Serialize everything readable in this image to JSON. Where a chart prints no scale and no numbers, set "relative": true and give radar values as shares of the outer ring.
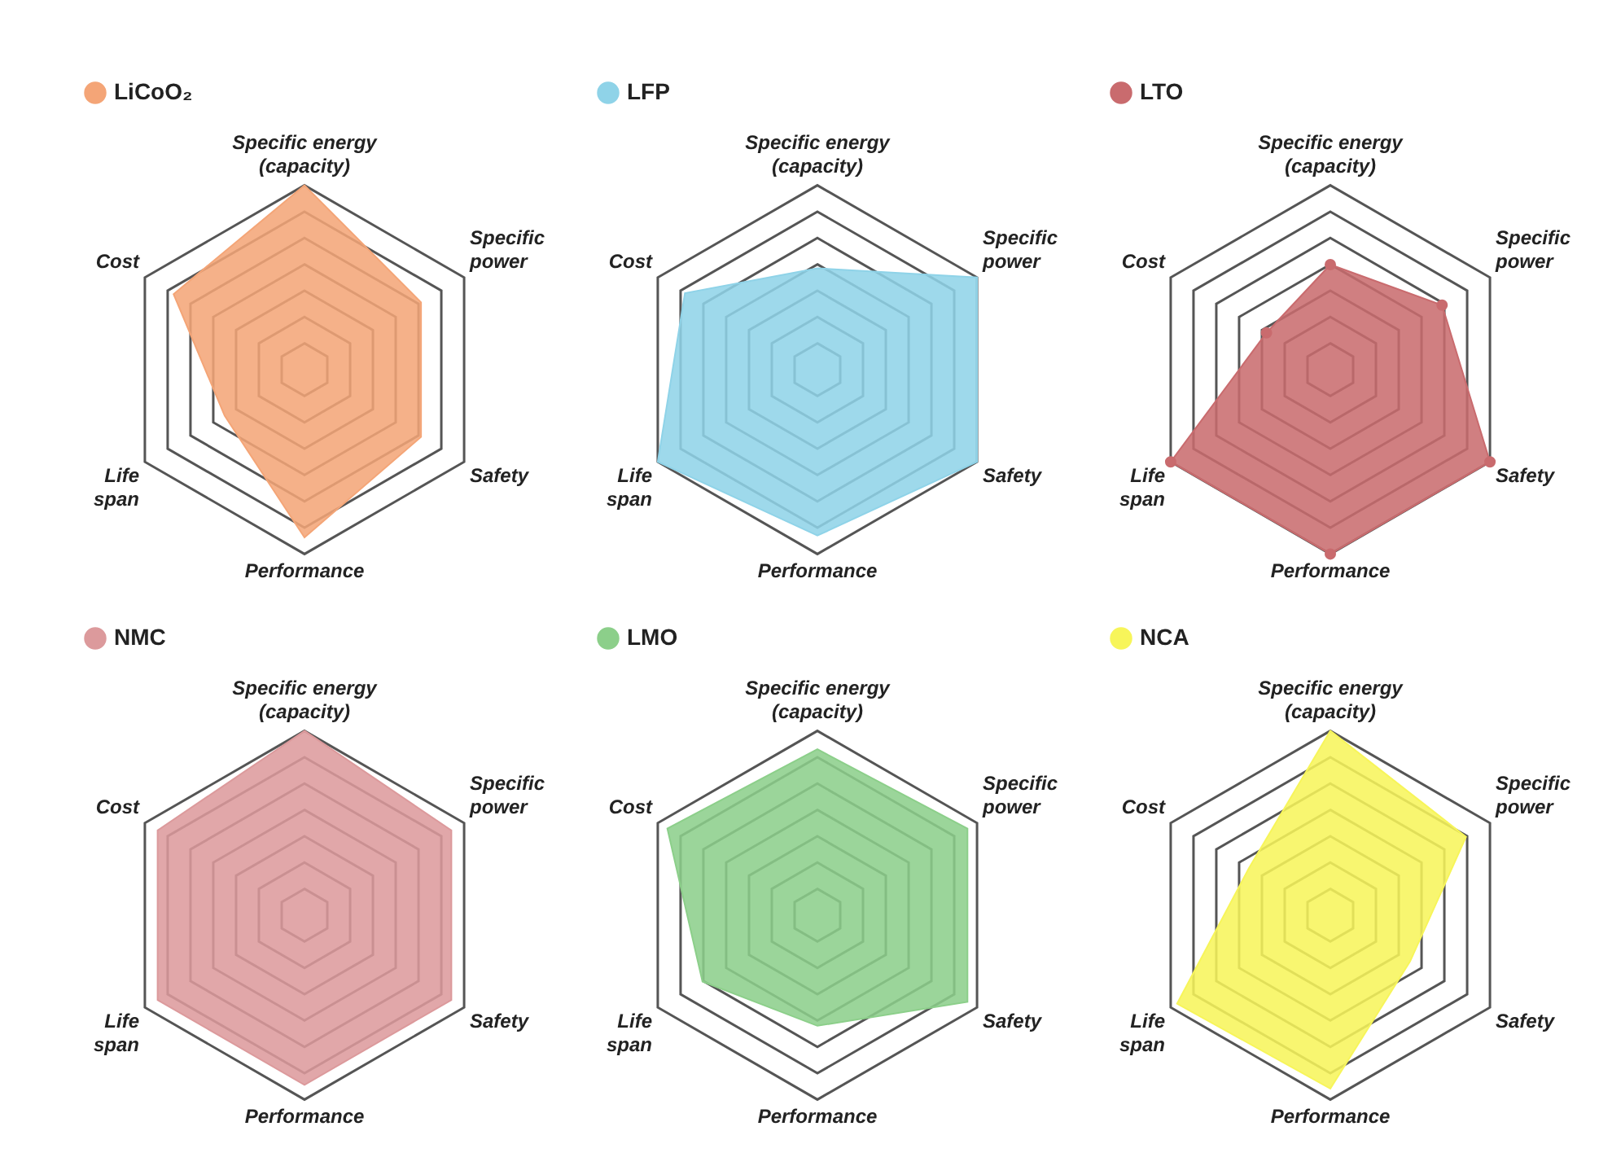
{
  "chart_data": [
    {
      "type": "radar",
      "categories": [
        "Specific energy\n(capacity)",
        "Specific\npower",
        "Safety",
        "Performance",
        "Life\nspan",
        "Cost"
      ],
      "relative": true,
      "grid": true,
      "legend": "top left",
      "marker": "none",
      "series": [
        {
          "name": "LiCoO₂",
          "color": "#f4a577",
          "values": [
            1.0,
            0.73,
            0.73,
            0.91,
            0.5,
            0.82
          ]
        }
      ]
    },
    {
      "type": "radar",
      "categories": [
        "Specific energy\n(capacity)",
        "Specific\npower",
        "Safety",
        "Performance",
        "Life\nspan",
        "Cost"
      ],
      "relative": true,
      "grid": true,
      "legend": "top left",
      "marker": "none",
      "series": [
        {
          "name": "LFP",
          "color": "#8fd3e8",
          "values": [
            0.55,
            1.0,
            1.0,
            0.9,
            1.0,
            0.83
          ]
        }
      ]
    },
    {
      "type": "radar",
      "categories": [
        "Specific energy\n(capacity)",
        "Specific\npower",
        "Safety",
        "Performance",
        "Life\nspan",
        "Cost"
      ],
      "relative": true,
      "grid": true,
      "legend": "top left",
      "marker": "circle",
      "series": [
        {
          "name": "LTO",
          "color": "#c96b6e",
          "values": [
            0.57,
            0.7,
            1.0,
            1.0,
            1.0,
            0.4
          ]
        }
      ]
    },
    {
      "type": "radar",
      "categories": [
        "Specific energy\n(capacity)",
        "Specific\npower",
        "Safety",
        "Performance",
        "Life\nspan",
        "Cost"
      ],
      "relative": true,
      "grid": true,
      "legend": "top left",
      "marker": "none",
      "series": [
        {
          "name": "NMC",
          "color": "#dc9a9c",
          "values": [
            1.0,
            0.92,
            0.92,
            0.92,
            0.92,
            0.92
          ]
        }
      ]
    },
    {
      "type": "radar",
      "categories": [
        "Specific energy\n(capacity)",
        "Specific\npower",
        "Safety",
        "Performance",
        "Life\nspan",
        "Cost"
      ],
      "relative": true,
      "grid": true,
      "legend": "top left",
      "marker": "none",
      "series": [
        {
          "name": "LMO",
          "color": "#8ccf8a",
          "values": [
            0.9,
            0.94,
            0.94,
            0.6,
            0.72,
            0.94
          ]
        }
      ]
    },
    {
      "type": "radar",
      "categories": [
        "Specific energy\n(capacity)",
        "Specific\npower",
        "Safety",
        "Performance",
        "Life\nspan",
        "Cost"
      ],
      "relative": true,
      "grid": true,
      "legend": "top left",
      "marker": "none",
      "series": [
        {
          "name": "NCA",
          "color": "#f7f55a",
          "values": [
            1.0,
            0.85,
            0.5,
            0.94,
            0.96,
            0.51
          ]
        }
      ]
    }
  ]
}
